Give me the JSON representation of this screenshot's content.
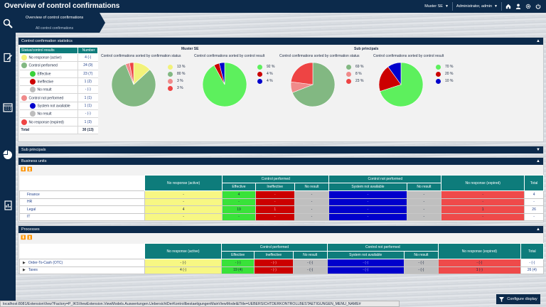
{
  "header": {
    "title": "Overview of control confirmations",
    "customer": "Muster SE",
    "user": "Administrator, admin"
  },
  "nav": {
    "item1": "Overview of control confirmations",
    "item2": "All control confirmations"
  },
  "panels": {
    "stats": "Control confirmation statistics",
    "sub": "Sub principals",
    "bu": "Business units",
    "proc": "Processes"
  },
  "stats_table": {
    "headers": [
      "Status/control results",
      "Number"
    ],
    "rows": [
      {
        "label": "No response (active)",
        "num": "4 (-)",
        "color": "#f2f27a",
        "indent": 0
      },
      {
        "label": "Control performed",
        "num": "24 (9)",
        "color": "#82b882",
        "indent": 0
      },
      {
        "label": "Effective",
        "num": "23 (7)",
        "color": "#39d139",
        "indent": 1
      },
      {
        "label": "Ineffective",
        "num": "1 (2)",
        "color": "#cc0000",
        "indent": 1
      },
      {
        "label": "No result",
        "num": "- (-)",
        "color": "#bdbdbd",
        "indent": 1
      },
      {
        "label": "Control not performed",
        "num": "1 (1)",
        "color": "#f08a8a",
        "indent": 0
      },
      {
        "label": "System not available",
        "num": "1 (1)",
        "color": "#0000cc",
        "indent": 1
      },
      {
        "label": "No result",
        "num": "- (-)",
        "color": "#bdbdbd",
        "indent": 1
      },
      {
        "label": "No response (expired)",
        "num": "1 (3)",
        "color": "#ee4444",
        "indent": 0
      },
      {
        "label": "Total",
        "num": "30 (13)",
        "color": "",
        "indent": 0
      }
    ]
  },
  "muster": {
    "title": "Muster SE",
    "chart1_title": "Control confirmations sorted by confirmation status",
    "chart2_title": "Control confirmations sorted by control result"
  },
  "subp": {
    "title": "Sub principals",
    "chart1_title": "Control confirmations sorted by confirmation status",
    "chart2_title": "Control confirmations sorted by control result"
  },
  "chart_data": [
    {
      "type": "pie",
      "title": "Control confirmations sorted by confirmation status",
      "group": "Muster SE",
      "values": [
        13,
        80,
        3,
        3
      ],
      "labels": [
        "13 %",
        "80 %",
        "3 %",
        "3 %"
      ],
      "colors": [
        "#f2f27a",
        "#82b882",
        "#f08a8a",
        "#ee4444"
      ]
    },
    {
      "type": "pie",
      "title": "Control confirmations sorted by control result",
      "group": "Muster SE",
      "values": [
        92,
        4,
        4
      ],
      "labels": [
        "92 %",
        "4 %",
        "4 %"
      ],
      "colors": [
        "#5df05d",
        "#cc0000",
        "#0000cc"
      ]
    },
    {
      "type": "pie",
      "title": "Control confirmations sorted by confirmation status",
      "group": "Sub principals",
      "values": [
        69,
        8,
        23
      ],
      "labels": [
        "69 %",
        "8 %",
        "23 %"
      ],
      "colors": [
        "#82b882",
        "#f08a8a",
        "#ee4444"
      ]
    },
    {
      "type": "pie",
      "title": "Control confirmations sorted by control result",
      "group": "Sub principals",
      "values": [
        70,
        20,
        10
      ],
      "labels": [
        "70 %",
        "20 %",
        "10 %"
      ],
      "colors": [
        "#5df05d",
        "#cc0000",
        "#0000cc"
      ]
    }
  ],
  "table_headers": {
    "no_resp_active": "No response (active)",
    "ctrl_perf": "Control performed",
    "ctrl_not_perf": "Control not performed",
    "no_resp_exp": "No response (expired)",
    "total": "Total",
    "effective": "Effective",
    "ineffective": "Ineffective",
    "no_result": "No result",
    "sys_na": "System not available"
  },
  "bu_rows": [
    {
      "name": "Finance",
      "c": [
        "-",
        "4",
        "-",
        "-",
        "-",
        "-",
        "-",
        "4"
      ]
    },
    {
      "name": "HR",
      "c": [
        "-",
        "-",
        "-",
        "-",
        "-",
        "-",
        "-",
        "-"
      ]
    },
    {
      "name": "Legal",
      "c": [
        "4",
        "19",
        "1",
        "-",
        "-",
        "-",
        "1",
        "26"
      ]
    },
    {
      "name": "IT",
      "c": [
        "-",
        "-",
        "-",
        "-",
        "-",
        "-",
        "-",
        "-"
      ]
    }
  ],
  "proc_rows": [
    {
      "name": "Order-To-Cash (OTC)",
      "c": [
        "- (-)",
        "- (-)",
        "- (-)",
        "- (-)",
        "- (-)",
        "- (-)",
        "- (-)",
        "- (-)"
      ]
    },
    {
      "name": "Taxes",
      "c": [
        "4 (-)",
        "19 (4)",
        "- (-)",
        "- (-)",
        "- (-)",
        "- (-)",
        "1 (-)",
        "26 (4)"
      ]
    }
  ],
  "status_url": "localhost:8081/ExtensionView?Factory=P_IKSViewExtension.ViewModels.Auswertungen.UebersichtDerKontrollbestaetigungenMainViewModel&Title=UEBERSICHTDERKONTROLLBESTAETIGUNGEN_MENU_NAME#",
  "configure": "Configure display"
}
